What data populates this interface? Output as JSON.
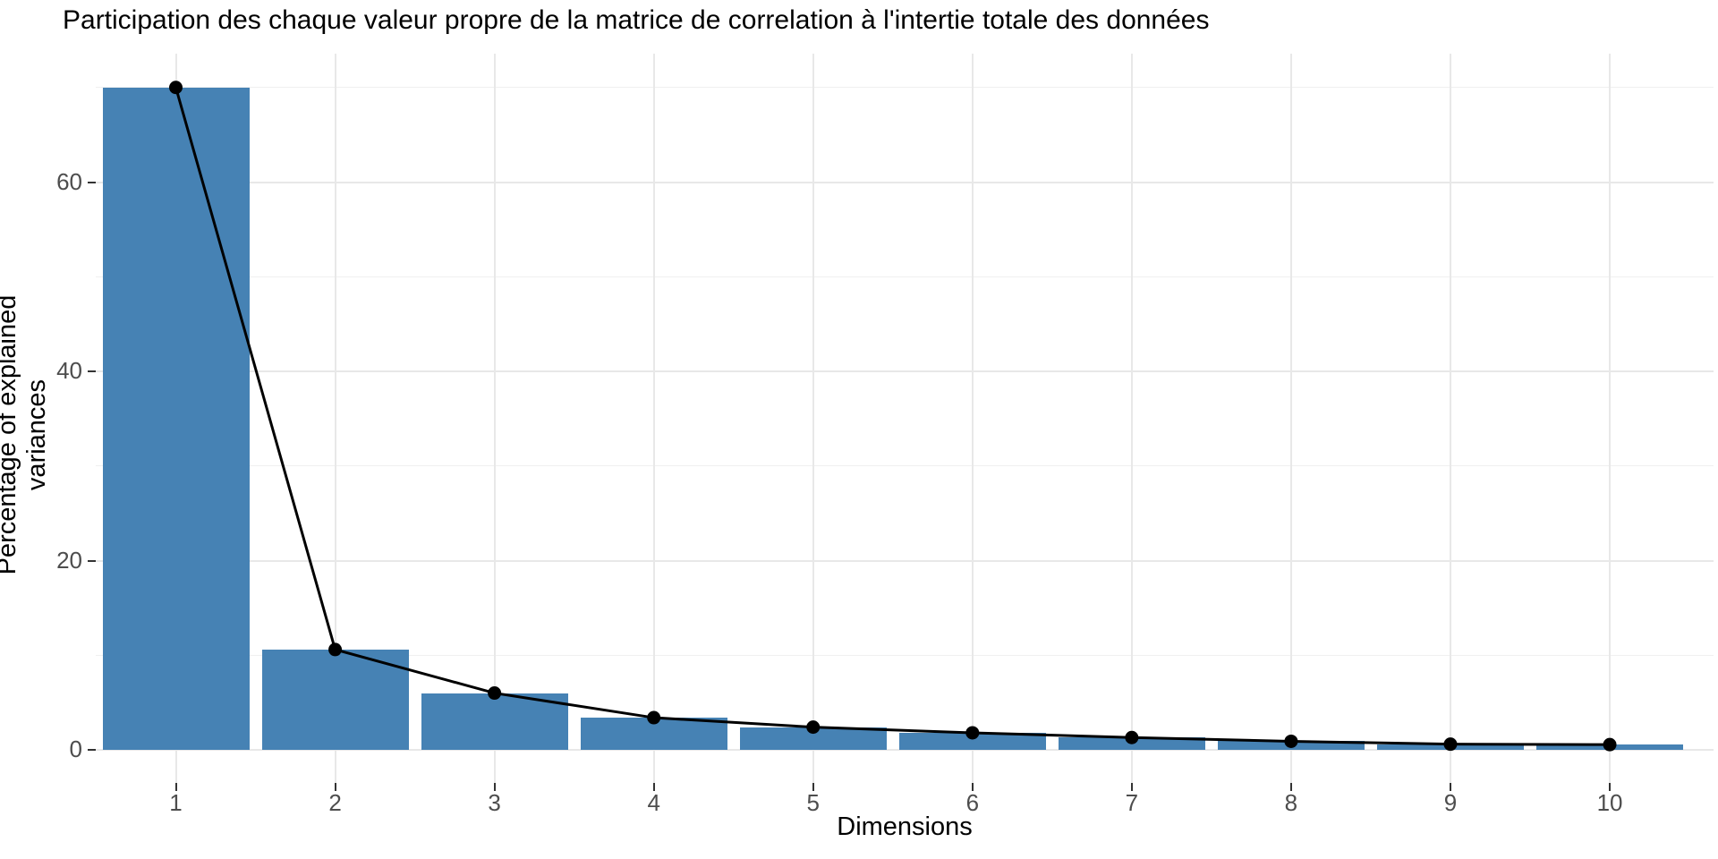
{
  "chart_data": {
    "type": "bar",
    "overlay": "line",
    "title": "Participation des chaque valeur propre de la matrice de correlation à l'intertie totale des données",
    "xlabel": "Dimensions",
    "ylabel": "Percentage of explained variances",
    "categories": [
      "1",
      "2",
      "3",
      "4",
      "5",
      "6",
      "7",
      "8",
      "9",
      "10"
    ],
    "values": [
      70.0,
      10.6,
      6.0,
      3.4,
      2.4,
      1.8,
      1.3,
      0.9,
      0.6,
      0.55
    ],
    "series": [
      {
        "name": "eigenvalue-percentage-bars",
        "type": "bar",
        "values": [
          70.0,
          10.6,
          6.0,
          3.4,
          2.4,
          1.8,
          1.3,
          0.9,
          0.6,
          0.55
        ]
      },
      {
        "name": "eigenvalue-percentage-line",
        "type": "line",
        "values": [
          70.0,
          10.6,
          6.0,
          3.4,
          2.4,
          1.8,
          1.3,
          0.9,
          0.6,
          0.55
        ]
      }
    ],
    "ylim": [
      0,
      73.5
    ],
    "yticks": [
      0,
      20,
      40,
      60
    ],
    "ytick_labels": [
      "0",
      "20",
      "40",
      "60"
    ],
    "y_minor_gridlines": [
      10,
      30,
      50,
      70
    ],
    "legend": "none",
    "grid": "on",
    "bar_color": "#4682B4",
    "line_color": "#000000",
    "point_color": "#000000",
    "background_color": "#ffffff",
    "axis_text_color": "#4d4d4d"
  }
}
